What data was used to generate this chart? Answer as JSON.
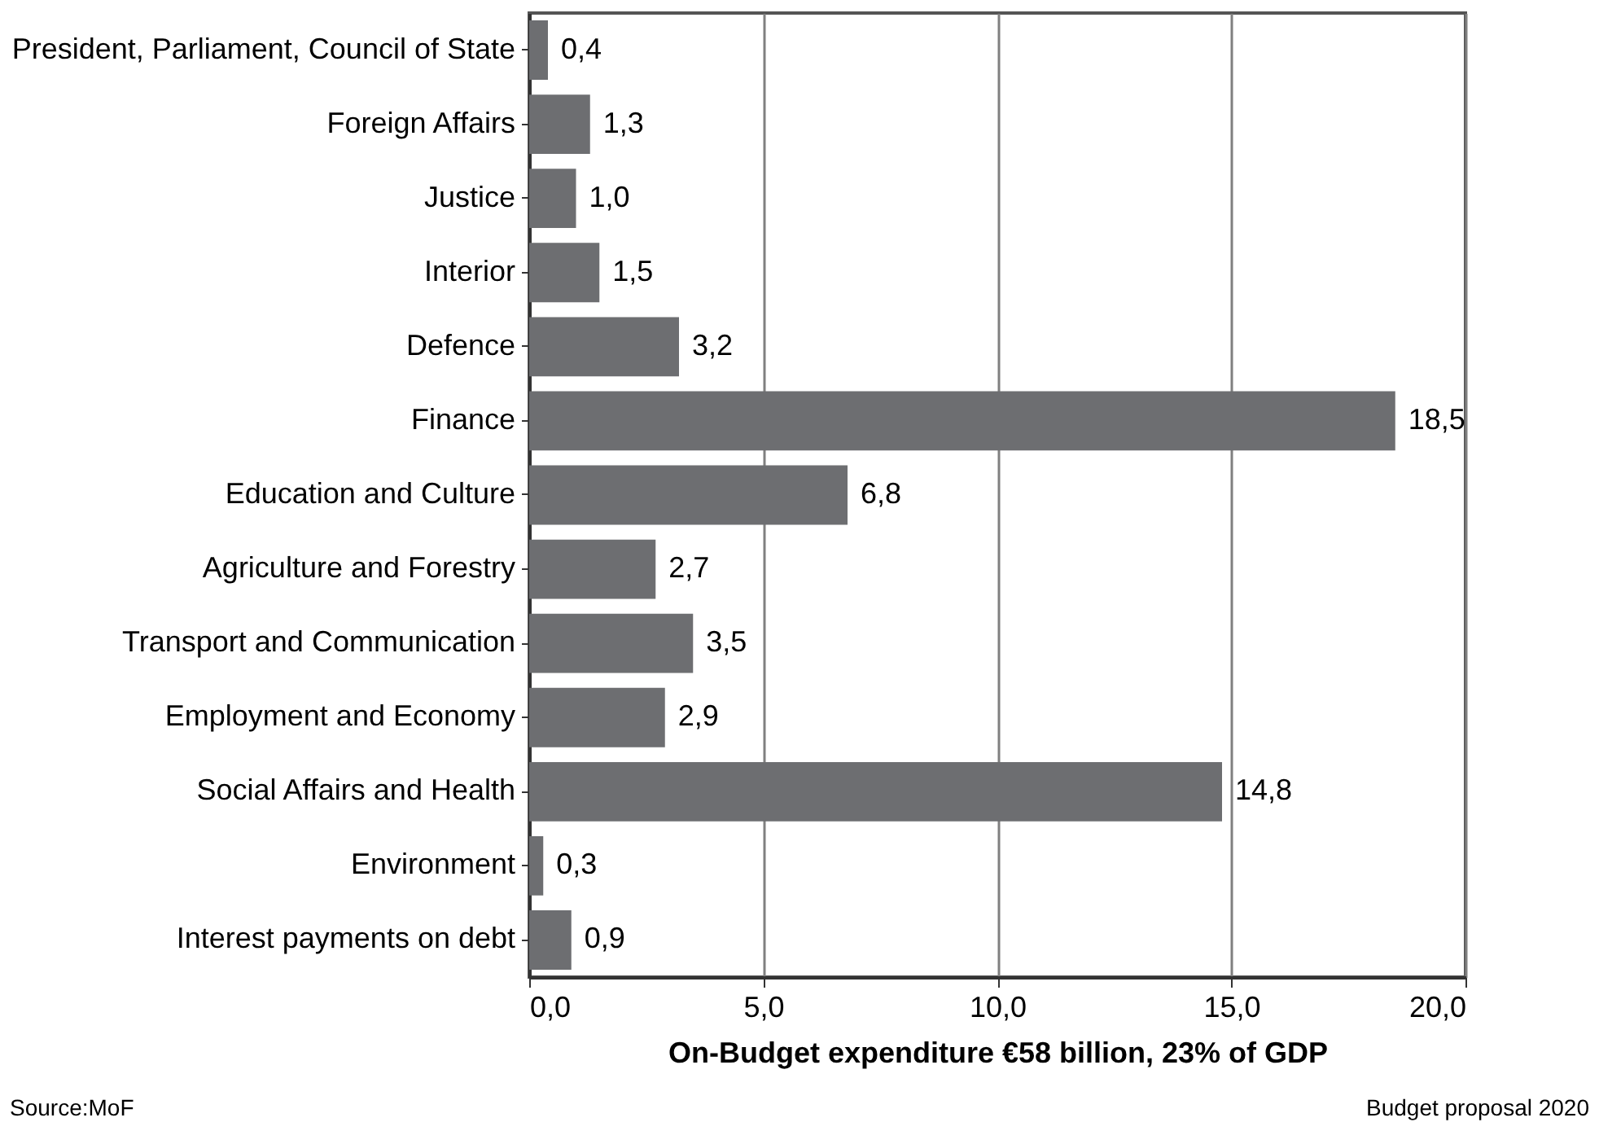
{
  "chart_data": {
    "type": "bar",
    "orientation": "horizontal",
    "categories": [
      "President, Parliament, Council of State",
      "Foreign Affairs",
      "Justice",
      "Interior",
      "Defence",
      "Finance",
      "Education and Culture",
      "Agriculture and Forestry",
      "Transport and Communication",
      "Employment and Economy",
      "Social Affairs and Health",
      "Environment",
      "Interest payments on debt"
    ],
    "values": [
      0.4,
      1.3,
      1.0,
      1.5,
      3.2,
      18.5,
      6.8,
      2.7,
      3.5,
      2.9,
      14.8,
      0.3,
      0.9
    ],
    "value_labels": [
      "0,4",
      "1,3",
      "1,0",
      "1,5",
      "3,2",
      "18,5",
      "6,8",
      "2,7",
      "3,5",
      "2,9",
      "14,8",
      "0,3",
      "0,9"
    ],
    "color": "#6d6e71",
    "xlim": [
      0,
      20
    ],
    "xticks": [
      {
        "value": 0,
        "label": "0,0"
      },
      {
        "value": 5,
        "label": "5,0"
      },
      {
        "value": 10,
        "label": "10,0"
      },
      {
        "value": 15,
        "label": "15,0"
      },
      {
        "value": 20,
        "label": "20,0"
      }
    ],
    "xlabel": "On-Budget expenditure €58 billion, 23% of GDP",
    "grid": "x",
    "annotations": [
      "Source:MoF",
      "Budget proposal 2020"
    ]
  }
}
